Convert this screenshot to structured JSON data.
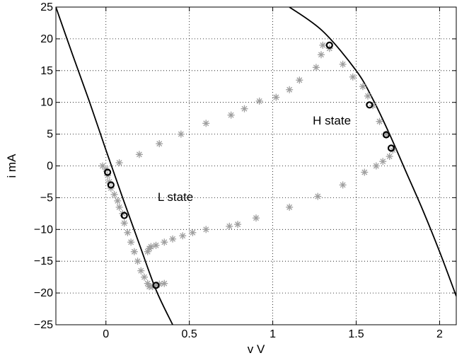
{
  "chart_data": {
    "type": "scatter",
    "title": "",
    "xlabel": "v  V",
    "ylabel": "i  mA",
    "xlim": [
      -0.3,
      2.1
    ],
    "ylim": [
      -25,
      25
    ],
    "xticks": [
      0,
      0.5,
      1,
      1.5,
      2
    ],
    "xtick_labels": [
      "0",
      "0.5",
      "1",
      "1.5",
      "2"
    ],
    "yticks": [
      -25,
      -20,
      -15,
      -10,
      -5,
      0,
      5,
      10,
      15,
      20,
      25
    ],
    "ytick_labels": [
      "−25",
      "−20",
      "−15",
      "−10",
      "−5",
      "0",
      "5",
      "10",
      "15",
      "20",
      "25"
    ],
    "grid": true,
    "annotations": [
      {
        "text": "H state",
        "x": 1.24,
        "y": 6.5
      },
      {
        "text": "L state",
        "x": 0.31,
        "y": -5.5
      }
    ],
    "curves": [
      {
        "points": [
          [
            -0.3,
            25
          ],
          [
            -0.2,
            17.5
          ],
          [
            -0.1,
            10.2
          ],
          [
            0.0,
            2.5
          ],
          [
            0.1,
            -5.0
          ],
          [
            0.2,
            -12.3
          ],
          [
            0.3,
            -19.5
          ],
          [
            0.4,
            -25
          ]
        ],
        "color": "#000000"
      },
      {
        "points": [
          [
            1.1,
            25
          ],
          [
            1.3,
            21.2
          ],
          [
            1.5,
            15.0
          ],
          [
            1.6,
            10.5
          ],
          [
            1.7,
            5.0
          ],
          [
            1.8,
            -1.0
          ],
          [
            1.9,
            -7.0
          ],
          [
            2.0,
            -13.5
          ],
          [
            2.1,
            -20.5
          ]
        ],
        "color": "#000000"
      }
    ],
    "series": [
      {
        "marker": "asterisk",
        "color": "#9e9e9e",
        "x": [
          0.0,
          0.01,
          0.02,
          0.03,
          0.05,
          0.07,
          0.08,
          0.1,
          0.11,
          0.13,
          0.15,
          0.17,
          0.19,
          0.21,
          0.23,
          0.25,
          0.26,
          0.28,
          0.3,
          0.32,
          0.35,
          0.25,
          0.26,
          0.27,
          0.3,
          0.35,
          0.4,
          0.46,
          0.52,
          0.6,
          0.74,
          0.79,
          0.9,
          1.1,
          1.27,
          1.42,
          1.55,
          1.62,
          1.66,
          1.7,
          1.72,
          1.68,
          1.64,
          1.6,
          1.57,
          1.54,
          1.48,
          1.42,
          1.34,
          1.3,
          1.29,
          1.26,
          1.16,
          1.1,
          1.02,
          0.92,
          0.83,
          0.75,
          0.6,
          0.45,
          0.32,
          0.2,
          0.08,
          -0.02
        ],
        "y": [
          -0.5,
          -1.5,
          -2.5,
          -3.5,
          -4.5,
          -5.5,
          -6.5,
          -7.5,
          -9.0,
          -10.5,
          -12.0,
          -13.5,
          -15.0,
          -16.5,
          -17.5,
          -18.5,
          -19.0,
          -19.0,
          -18.8,
          -18.6,
          -18.5,
          -13.5,
          -13.0,
          -12.7,
          -12.5,
          -12.0,
          -11.5,
          -11.0,
          -10.5,
          -10.0,
          -9.5,
          -9.2,
          -8.2,
          -6.5,
          -4.8,
          -3.0,
          -1.0,
          0.0,
          0.7,
          1.5,
          2.5,
          5.0,
          7.0,
          9.5,
          11.0,
          12.5,
          14.0,
          16.0,
          18.5,
          19.0,
          17.5,
          15.5,
          13.5,
          12.0,
          10.8,
          10.2,
          9.0,
          8.0,
          6.7,
          5.0,
          3.5,
          1.8,
          0.5,
          0.0
        ]
      },
      {
        "marker": "circle",
        "color": "#000000",
        "x": [
          0.01,
          0.03,
          0.11,
          0.3,
          1.34,
          1.58,
          1.68,
          1.71
        ],
        "y": [
          -1.0,
          -3.0,
          -7.8,
          -18.8,
          19.0,
          9.6,
          4.9,
          2.8
        ]
      }
    ]
  }
}
